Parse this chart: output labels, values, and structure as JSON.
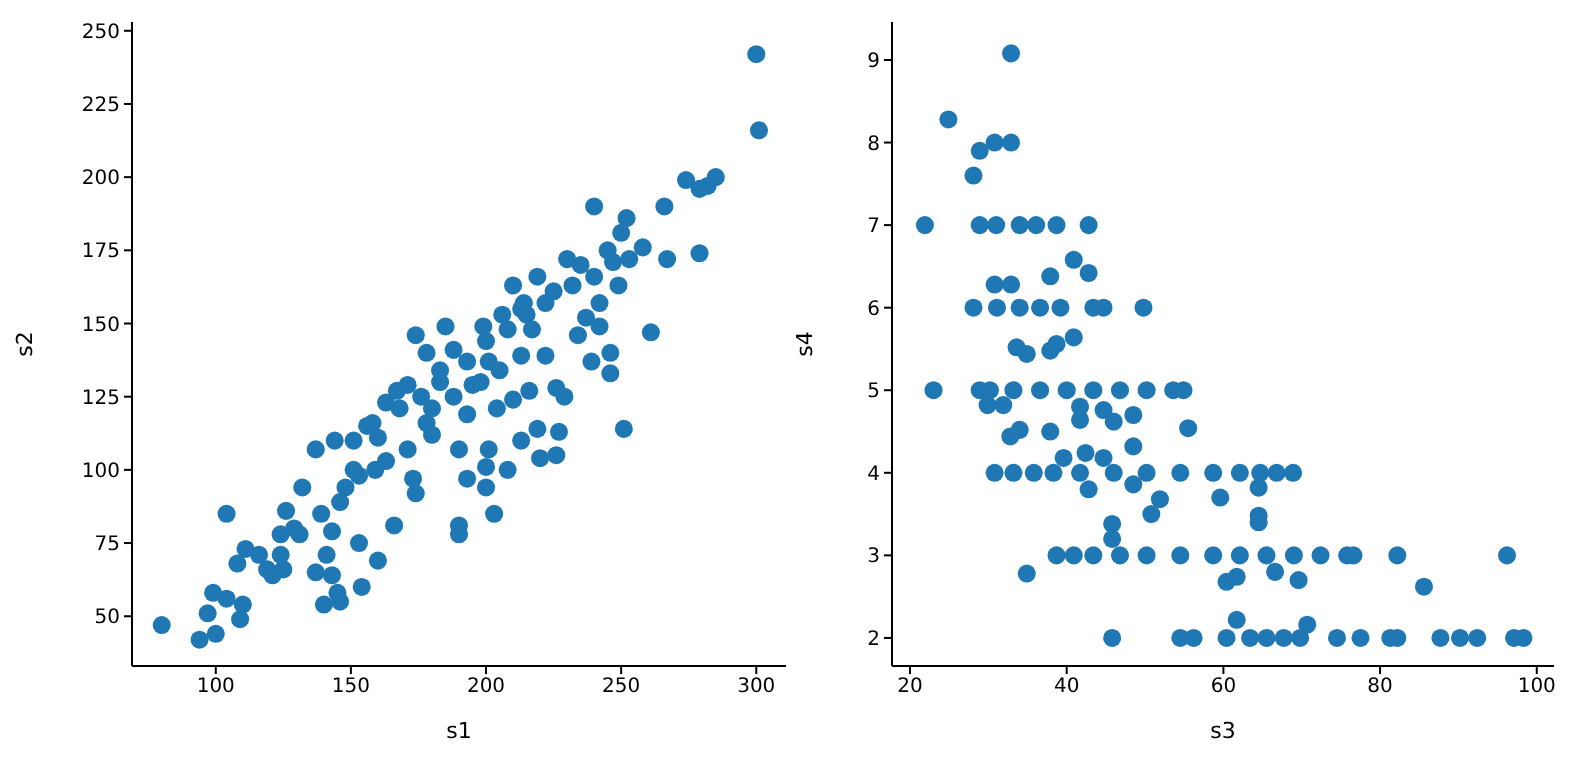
{
  "chart_data": [
    {
      "type": "scatter",
      "xlabel": "s1",
      "ylabel": "s2",
      "xlim": [
        69,
        311
      ],
      "ylim": [
        33,
        253
      ],
      "xticks": [
        100,
        150,
        200,
        250,
        300
      ],
      "yticks": [
        50,
        75,
        100,
        125,
        150,
        175,
        200,
        225,
        250
      ],
      "grid": false,
      "marker": "circle",
      "series": [
        {
          "color": "#1f77b4",
          "x": [
            80,
            94,
            100,
            97,
            99,
            104,
            109,
            110,
            104,
            108,
            111,
            116,
            121,
            125,
            124,
            129,
            126,
            132,
            137,
            137,
            140,
            143,
            145,
            146,
            141,
            143,
            144,
            148,
            151,
            153,
            154,
            156,
            160,
            159,
            163,
            166,
            167,
            171,
            173,
            174,
            174,
            178,
            180,
            183,
            185,
            188,
            190,
            190,
            190,
            193,
            193,
            195,
            199,
            200,
            200,
            201,
            203,
            201,
            204,
            206,
            208,
            210,
            210,
            213,
            213,
            214,
            216,
            219,
            219,
            220,
            222,
            225,
            226,
            226,
            227,
            229,
            230,
            232,
            234,
            235,
            237,
            239,
            240,
            240,
            242,
            242,
            245,
            246,
            246,
            247,
            249,
            250,
            251,
            252,
            253,
            258,
            261,
            266,
            267,
            274,
            279,
            279,
            282,
            285,
            300,
            301,
            158,
            168,
            176,
            183,
            193,
            200,
            208,
            215,
            222,
            180,
            171,
            163,
            153,
            146,
            139,
            131,
            124,
            119,
            151,
            160,
            178,
            188,
            198,
            205,
            213,
            217
          ],
          "values": [
            47,
            42,
            44,
            51,
            58,
            85,
            49,
            54,
            56,
            68,
            73,
            71,
            64,
            66,
            78,
            80,
            86,
            94,
            107,
            65,
            54,
            64,
            58,
            55,
            71,
            79,
            110,
            94,
            110,
            75,
            60,
            115,
            69,
            100,
            123,
            81,
            127,
            129,
            97,
            92,
            146,
            140,
            121,
            134,
            149,
            141,
            107,
            81,
            78,
            119,
            97,
            129,
            149,
            94,
            101,
            107,
            85,
            137,
            121,
            153,
            100,
            163,
            124,
            155,
            110,
            157,
            127,
            166,
            114,
            104,
            139,
            161,
            105,
            128,
            113,
            125,
            172,
            163,
            146,
            170,
            152,
            137,
            190,
            166,
            149,
            157,
            175,
            140,
            133,
            171,
            163,
            181,
            114,
            186,
            172,
            176,
            147,
            190,
            172,
            199,
            174,
            196,
            197,
            200,
            242,
            216,
            116,
            121,
            125,
            130,
            137,
            144,
            148,
            153,
            157,
            112,
            107,
            103,
            98,
            89,
            85,
            78,
            71,
            66,
            100,
            111,
            116,
            125,
            130,
            134,
            139,
            148
          ]
        }
      ]
    },
    {
      "type": "scatter",
      "xlabel": "s3",
      "ylabel": "s4",
      "xlim": [
        17.7,
        102.2
      ],
      "ylim": [
        1.66,
        9.46
      ],
      "xticks": [
        20,
        40,
        60,
        80,
        100
      ],
      "yticks": [
        2,
        3,
        4,
        5,
        6,
        7,
        8,
        9
      ],
      "grid": false,
      "marker": "circle",
      "series": [
        {
          "color": "#1f77b4",
          "x": [
            32.9,
            24.9,
            28.9,
            30.8,
            32.9,
            28.1,
            21.9,
            28.9,
            31.0,
            34.0,
            36.1,
            38.7,
            42.8,
            40.9,
            37.9,
            42.8,
            30.8,
            32.9,
            28.1,
            31.1,
            34.0,
            36.6,
            39.2,
            43.4,
            44.7,
            49.8,
            33.6,
            34.9,
            37.9,
            38.7,
            40.9,
            23.0,
            28.9,
            30.2,
            33.2,
            36.6,
            40.0,
            43.4,
            46.8,
            50.2,
            53.6,
            54.9,
            29.9,
            31.9,
            41.7,
            41.7,
            44.7,
            46.0,
            48.5,
            55.5,
            32.8,
            34.0,
            37.9,
            48.5,
            42.4,
            44.7,
            39.6,
            30.8,
            33.2,
            35.8,
            38.3,
            41.7,
            46.0,
            50.2,
            54.5,
            58.7,
            62.1,
            64.7,
            66.8,
            68.9,
            42.8,
            48.5,
            64.5,
            51.9,
            59.6,
            50.8,
            64.5,
            64.5,
            45.8,
            45.8,
            38.7,
            40.9,
            43.4,
            46.8,
            50.2,
            54.5,
            58.7,
            62.1,
            65.5,
            69.0,
            72.4,
            75.8,
            76.6,
            82.2,
            96.2,
            34.9,
            60.4,
            61.7,
            66.6,
            69.6,
            85.6,
            61.7,
            70.7,
            45.8,
            54.5,
            56.2,
            60.4,
            63.4,
            65.5,
            67.7,
            69.8,
            74.5,
            77.5,
            81.3,
            82.2,
            87.7,
            90.2,
            92.4,
            97.1,
            98.3
          ],
          "values": [
            9.08,
            8.28,
            7.9,
            8.0,
            8.0,
            7.6,
            7,
            7,
            7,
            7,
            7,
            7,
            7,
            6.58,
            6.38,
            6.42,
            6.28,
            6.28,
            6,
            6,
            6,
            6,
            6,
            6,
            6,
            6,
            5.52,
            5.44,
            5.48,
            5.56,
            5.64,
            5,
            5,
            5,
            5,
            5,
            5,
            5,
            5,
            5,
            5,
            5,
            4.82,
            4.82,
            4.8,
            4.64,
            4.76,
            4.62,
            4.7,
            4.54,
            4.44,
            4.52,
            4.5,
            4.32,
            4.24,
            4.18,
            4.18,
            4,
            4,
            4,
            4,
            4,
            4,
            4,
            4,
            4,
            4,
            4,
            4,
            4,
            3.8,
            3.86,
            3.82,
            3.68,
            3.7,
            3.5,
            3.48,
            3.4,
            3.38,
            3.2,
            3,
            3,
            3,
            3,
            3,
            3,
            3,
            3,
            3,
            3,
            3,
            3,
            3,
            3,
            3,
            2.78,
            2.68,
            2.74,
            2.8,
            2.7,
            2.62,
            2.22,
            2.16,
            2,
            2,
            2,
            2,
            2,
            2,
            2,
            2,
            2,
            2,
            2,
            2,
            2,
            2,
            2,
            2,
            2
          ]
        }
      ]
    }
  ]
}
